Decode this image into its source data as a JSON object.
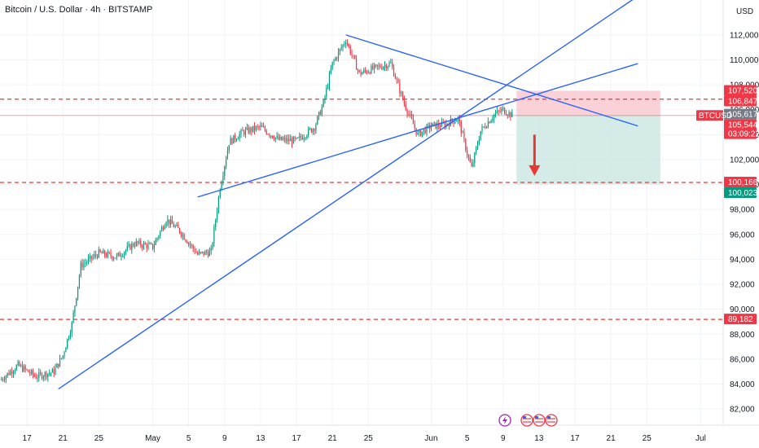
{
  "header": {
    "title": "Bitcoin / U.S. Dollar · 4h · BITSTAMP",
    "currency": "USD"
  },
  "price_tags": {
    "symbol": "BTCUSD",
    "countdown": "03:09:22",
    "items": [
      {
        "text": "107,520",
        "value": 107520,
        "color": "#f23645"
      },
      {
        "text": "106,847",
        "value": 106847,
        "color": "#f23645"
      },
      {
        "text": "105,617",
        "value": 105617,
        "color": "#787b86"
      },
      {
        "text": "105,544",
        "value": 105544,
        "color": "#f23645"
      },
      {
        "text": "100,166",
        "value": 100166,
        "color": "#f23645"
      },
      {
        "text": "100,023",
        "value": 100023,
        "color": "#089981"
      },
      {
        "text": "89,182",
        "value": 89182,
        "color": "#f23645"
      }
    ]
  },
  "event_icons": [
    "lightning-icon",
    "us-flag-icon",
    "us-flag-icon",
    "us-flag-icon"
  ],
  "colors": {
    "up": "#089981",
    "down": "#f23645",
    "trendline": "#2962ff",
    "level_line": "#e53935",
    "stop_zone": "#f8c9d0",
    "target_zone": "#cfe9e4",
    "arrow": "#e53935"
  },
  "chart_data": {
    "type": "candlestick",
    "title": "Bitcoin / U.S. Dollar · 4h · BITSTAMP",
    "currency": "USD",
    "y_ticks": [
      112000,
      110000,
      108000,
      106000,
      104000,
      102000,
      100000,
      98000,
      96000,
      94000,
      92000,
      90000,
      88000,
      86000,
      84000,
      82000
    ],
    "y_tick_labels": [
      "112,000",
      "110,000",
      "108,000",
      "106,000",
      "104,000",
      "102,000",
      "100,000",
      "98,000",
      "96,000",
      "94,000",
      "92,000",
      "90,000",
      "88,000",
      "86,000",
      "84,000",
      "82,000"
    ],
    "ylim": [
      80700,
      114800
    ],
    "x_ticks": [
      "2025-04-17",
      "2025-04-21",
      "2025-04-25",
      "2025-05-01",
      "2025-05-05",
      "2025-05-09",
      "2025-05-13",
      "2025-05-17",
      "2025-05-21",
      "2025-05-25",
      "2025-06-01",
      "2025-06-05",
      "2025-06-09",
      "2025-06-13",
      "2025-06-17",
      "2025-06-21",
      "2025-06-25",
      "2025-07-01"
    ],
    "x_tick_labels": [
      "17",
      "21",
      "25",
      "May",
      "5",
      "9",
      "13",
      "17",
      "21",
      "25",
      "Jun",
      "5",
      "9",
      "13",
      "17",
      "21",
      "25",
      "Jul"
    ],
    "xlim": [
      "2025-04-14T00:00",
      "2025-07-03T12:00"
    ],
    "last_price": 105544,
    "horizontal_levels": [
      106847,
      100166,
      89182
    ],
    "trendlines": [
      {
        "start": [
          "2025-04-20T12:00",
          83600
        ],
        "end": [
          "2025-06-25T00:00",
          115600
        ]
      },
      {
        "start": [
          "2025-05-06T00:00",
          99000
        ],
        "end": [
          "2025-06-24T00:00",
          109700
        ]
      },
      {
        "start": [
          "2025-05-22T12:00",
          112000
        ],
        "end": [
          "2025-06-24T00:00",
          104700
        ]
      }
    ],
    "position": {
      "direction": "short",
      "from": "2025-06-10T12:00",
      "to": "2025-06-26T12:00",
      "stop": 107520,
      "entry": 105544,
      "target": 100023
    },
    "arrow": {
      "time": "2025-06-12T12:00",
      "from_price": 104000,
      "to_price": 100700
    },
    "path_keypoints": [
      [
        "2025-04-14T00:00",
        84300
      ],
      [
        "2025-04-16T00:00",
        85500
      ],
      [
        "2025-04-18T00:00",
        84600
      ],
      [
        "2025-04-20T00:00",
        85000
      ],
      [
        "2025-04-21T00:00",
        86300
      ],
      [
        "2025-04-22T00:00",
        88800
      ],
      [
        "2025-04-23T00:00",
        93500
      ],
      [
        "2025-04-25T00:00",
        94500
      ],
      [
        "2025-04-27T00:00",
        94200
      ],
      [
        "2025-04-29T00:00",
        95300
      ],
      [
        "2025-05-01T00:00",
        95000
      ],
      [
        "2025-05-02T12:00",
        97200
      ],
      [
        "2025-05-04T00:00",
        96300
      ],
      [
        "2025-05-06T00:00",
        94400
      ],
      [
        "2025-05-07T12:00",
        94600
      ],
      [
        "2025-05-08T12:00",
        99800
      ],
      [
        "2025-05-09T12:00",
        103400
      ],
      [
        "2025-05-11T00:00",
        104200
      ],
      [
        "2025-05-13T00:00",
        104600
      ],
      [
        "2025-05-15T00:00",
        103600
      ],
      [
        "2025-05-17T00:00",
        103500
      ],
      [
        "2025-05-19T00:00",
        104600
      ],
      [
        "2025-05-20T00:00",
        106500
      ],
      [
        "2025-05-21T00:00",
        109700
      ],
      [
        "2025-05-22T12:00",
        111600
      ],
      [
        "2025-05-24T00:00",
        108900
      ],
      [
        "2025-05-26T00:00",
        109400
      ],
      [
        "2025-05-27T12:00",
        109700
      ],
      [
        "2025-05-29T00:00",
        106500
      ],
      [
        "2025-05-30T12:00",
        104000
      ],
      [
        "2025-06-01T00:00",
        104700
      ],
      [
        "2025-06-02T12:00",
        104800
      ],
      [
        "2025-06-04T00:00",
        105300
      ],
      [
        "2025-06-05T00:00",
        102500
      ],
      [
        "2025-06-05T12:00",
        101300
      ],
      [
        "2025-06-06T12:00",
        104300
      ],
      [
        "2025-06-08T00:00",
        105600
      ],
      [
        "2025-06-09T00:00",
        106000
      ],
      [
        "2025-06-10T00:00",
        105544
      ]
    ]
  }
}
